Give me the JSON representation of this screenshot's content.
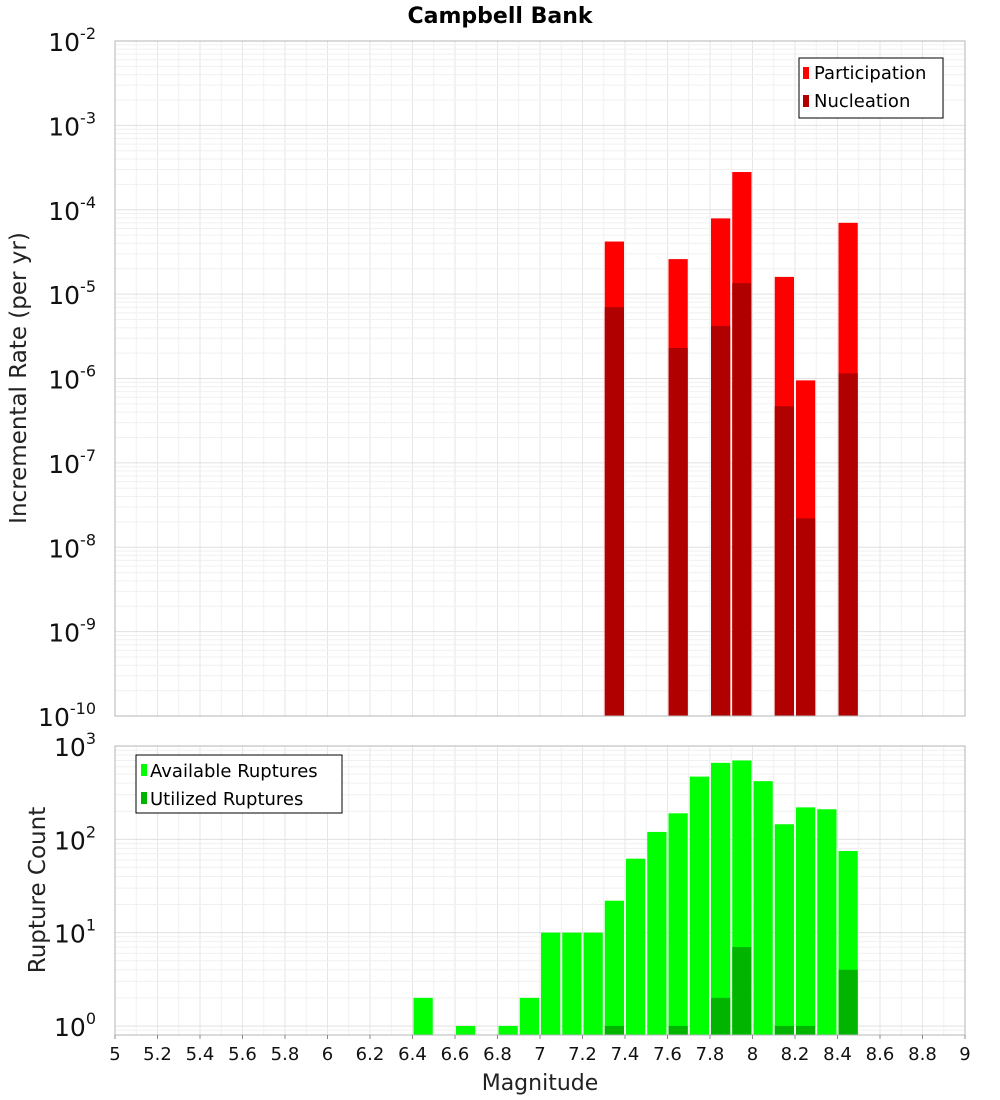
{
  "chart_data": {
    "title": "Campbell Bank",
    "xlabel": "Magnitude",
    "xlim": [
      5,
      9
    ],
    "x_ticks": [
      "5",
      "5.2",
      "5.4",
      "5.6",
      "5.8",
      "6",
      "6.2",
      "6.4",
      "6.6",
      "6.8",
      "7",
      "7.2",
      "7.4",
      "7.6",
      "7.8",
      "8",
      "8.2",
      "8.4",
      "8.6",
      "8.8",
      "9"
    ],
    "bin_width": 0.1,
    "panels": [
      {
        "type": "bar",
        "yscale": "log",
        "ylabel": "Incremental Rate (per yr)",
        "ylim_exp": [
          -10,
          -2
        ],
        "y_ticks": [
          {
            "base": "10",
            "exp": "-2"
          },
          {
            "base": "10",
            "exp": "-3"
          },
          {
            "base": "10",
            "exp": "-4"
          },
          {
            "base": "10",
            "exp": "-5"
          },
          {
            "base": "10",
            "exp": "-6"
          },
          {
            "base": "10",
            "exp": "-7"
          },
          {
            "base": "10",
            "exp": "-8"
          },
          {
            "base": "10",
            "exp": "-9"
          },
          {
            "base": "10",
            "exp": "-10"
          }
        ],
        "legend": {
          "position": "top-right"
        },
        "series": [
          {
            "name": "Participation",
            "color": "#ff0000",
            "x": [
              7.35,
              7.65,
              7.85,
              7.95,
              8.15,
              8.25,
              8.45
            ],
            "values": [
              4.2e-05,
              2.6e-05,
              7.9e-05,
              0.00028,
              1.6e-05,
              9.5e-07,
              7e-05
            ]
          },
          {
            "name": "Nucleation",
            "color": "#b00000",
            "x": [
              7.35,
              7.65,
              7.85,
              7.95,
              8.15,
              8.25,
              8.45
            ],
            "values": [
              7e-06,
              2.3e-06,
              4.2e-06,
              1.35e-05,
              4.7e-07,
              2.2e-08,
              1.15e-06
            ]
          }
        ]
      },
      {
        "type": "bar",
        "yscale": "log",
        "ylabel": "Rupture Count",
        "ylim": [
          0.8,
          1000
        ],
        "y_ticks": [
          {
            "base": "10",
            "exp": "3"
          },
          {
            "base": "10",
            "exp": "2"
          },
          {
            "base": "10",
            "exp": "1"
          },
          {
            "base": "10",
            "exp": "0"
          }
        ],
        "legend": {
          "position": "top-left"
        },
        "series": [
          {
            "name": "Available Ruptures",
            "color": "#00ff00",
            "x": [
              6.45,
              6.65,
              6.85,
              6.95,
              7.05,
              7.15,
              7.25,
              7.35,
              7.45,
              7.55,
              7.65,
              7.75,
              7.85,
              7.95,
              8.05,
              8.15,
              8.25,
              8.35,
              8.45
            ],
            "values": [
              2,
              1,
              1,
              2,
              10,
              10,
              10,
              22,
              62,
              120,
              190,
              470,
              660,
              700,
              420,
              145,
              220,
              210,
              75
            ]
          },
          {
            "name": "Utilized Ruptures",
            "color": "#00b400",
            "x": [
              7.35,
              7.65,
              7.85,
              7.95,
              8.15,
              8.25,
              8.45
            ],
            "values": [
              1,
              1,
              2,
              7,
              1,
              1,
              4
            ]
          }
        ]
      }
    ]
  }
}
